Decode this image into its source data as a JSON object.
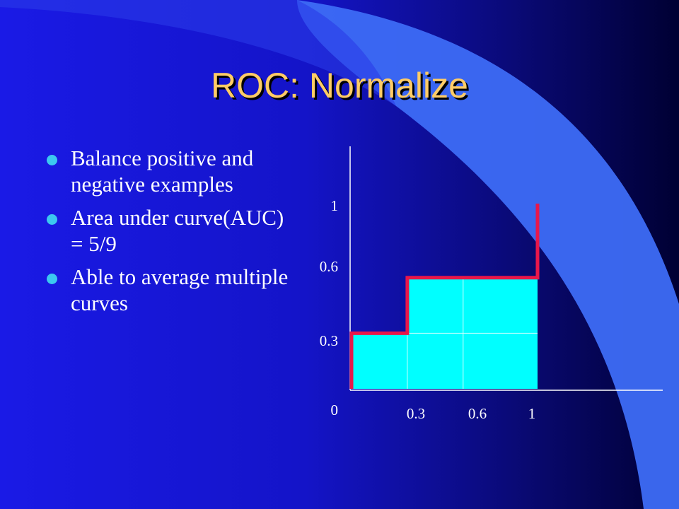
{
  "slide": {
    "title": "ROC: Normalize",
    "bullets": [
      "Balance positive and negative examples",
      "Area under curve(AUC) = 5/9",
      "Able to average multiple curves"
    ]
  },
  "colors": {
    "background": "#1414c8",
    "title": "#ffcc66",
    "bullet": "#3cc8f0",
    "fill": "#00ffff",
    "curve": "#e8174a",
    "swoosh": "#3d6cf5"
  },
  "chart_data": {
    "type": "area",
    "x_ticks": [
      "0.3",
      "0.6",
      "1"
    ],
    "y_ticks": [
      "0",
      "0.3",
      "0.6",
      "1"
    ],
    "curve": {
      "x": [
        0,
        0,
        0.3,
        0.3,
        0.6,
        1,
        1
      ],
      "y": [
        0,
        0.3,
        0.3,
        0.6,
        0.6,
        0.6,
        1
      ]
    },
    "filled_region": "area under curve",
    "xlim": [
      0,
      1
    ],
    "ylim": [
      0,
      1
    ]
  }
}
